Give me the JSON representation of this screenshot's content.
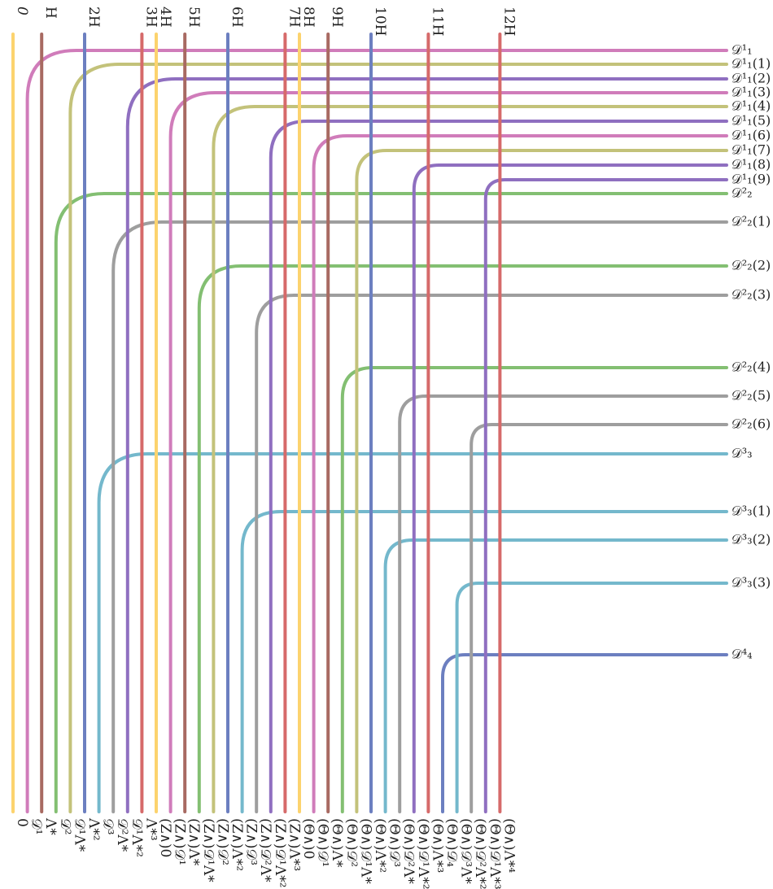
{
  "palette": {
    "yellow": "#fcd36e",
    "pink": "#d07cba",
    "brown": "#a86a62",
    "blue": "#6c7fc0",
    "red": "#d66a6a",
    "green": "#83bf72",
    "olive": "#c3c27a",
    "purple": "#8f6fc0",
    "gray": "#9e9e9e",
    "cyan": "#74b8cc"
  },
  "top_labels": [
    {
      "text": "0",
      "color": "yellow"
    },
    {
      "text": "H",
      "color": "brown"
    },
    {
      "text": "2H",
      "color": "blue"
    },
    {
      "text": "3H",
      "color": "red"
    },
    {
      "text": "4H",
      "color": "yellow"
    },
    {
      "text": "5H",
      "color": "brown"
    },
    {
      "text": "6H",
      "color": "blue"
    },
    {
      "text": "7H",
      "color": "red"
    },
    {
      "text": "8H",
      "color": "yellow"
    },
    {
      "text": "9H",
      "color": "brown"
    },
    {
      "text": "10H",
      "color": "blue"
    },
    {
      "text": "11H",
      "color": "red"
    },
    {
      "text": "12H",
      "color": "red"
    }
  ],
  "bottom_labels": [
    {
      "text": "0",
      "color": "yellow"
    },
    {
      "text": "𝒟¹",
      "color": "pink"
    },
    {
      "text": "Λ*",
      "color": "brown"
    },
    {
      "text": "𝒟²",
      "color": "green"
    },
    {
      "text": "𝒟¹Λ*",
      "color": "olive"
    },
    {
      "text": "Λ*²",
      "color": "blue"
    },
    {
      "text": "𝒟³",
      "color": "cyan"
    },
    {
      "text": "𝒟²Λ*",
      "color": "gray"
    },
    {
      "text": "𝒟¹Λ*²",
      "color": "purple"
    },
    {
      "text": "Λ*³",
      "color": "red"
    },
    {
      "text": "(Z∧)0",
      "color": "yellow"
    },
    {
      "text": "(Z∧)𝒟¹",
      "color": "pink"
    },
    {
      "text": "(Z∧)Λ*",
      "color": "brown"
    },
    {
      "text": "(Z∧)𝒟¹Λ*",
      "color": "green"
    },
    {
      "text": "(Z∧)𝒟²",
      "color": "olive"
    },
    {
      "text": "(Z∧)Λ*²",
      "color": "blue"
    },
    {
      "text": "(Z∧)𝒟³",
      "color": "cyan"
    },
    {
      "text": "(Z∧)𝒟²Λ*",
      "color": "gray"
    },
    {
      "text": "(Z∧)𝒟¹Λ*²",
      "color": "purple"
    },
    {
      "text": "(Z∧)Λ*³",
      "color": "red"
    },
    {
      "text": "(Θ∧)0",
      "color": "yellow"
    },
    {
      "text": "(Θ∧)𝒟¹",
      "color": "pink"
    },
    {
      "text": "(Θ∧)Λ*",
      "color": "brown"
    },
    {
      "text": "(Θ∧)𝒟²",
      "color": "green"
    },
    {
      "text": "(Θ∧)𝒟¹Λ*",
      "color": "olive"
    },
    {
      "text": "(Θ∧)Λ*²",
      "color": "blue"
    },
    {
      "text": "(Θ∧)𝒟³",
      "color": "cyan"
    },
    {
      "text": "(Θ∧)𝒟²Λ*",
      "color": "gray"
    },
    {
      "text": "(Θ∧)𝒟¹Λ*²",
      "color": "purple"
    },
    {
      "text": "(Θ∧)Λ*³",
      "color": "red"
    },
    {
      "text": "(Θ∧)𝒟₄",
      "color": "blue"
    },
    {
      "text": "(Θ∧)𝒟³Λ*",
      "color": "cyan"
    },
    {
      "text": "(Θ∧)𝒟²Λ*²",
      "color": "gray"
    },
    {
      "text": "(Θ∧)𝒟¹Λ*³",
      "color": "purple"
    },
    {
      "text": "(Θ∧)Λ*⁴",
      "color": "red"
    }
  ],
  "right_labels": [
    {
      "text": "𝒟¹₁",
      "color": "pink"
    },
    {
      "text": "𝒟¹₁(1)",
      "color": "olive"
    },
    {
      "text": "𝒟¹₁(2)",
      "color": "purple"
    },
    {
      "text": "𝒟¹₁(3)",
      "color": "pink"
    },
    {
      "text": "𝒟¹₁(4)",
      "color": "olive"
    },
    {
      "text": "𝒟¹₁(5)",
      "color": "purple"
    },
    {
      "text": "𝒟¹₁(6)",
      "color": "pink"
    },
    {
      "text": "𝒟¹₁(7)",
      "color": "olive"
    },
    {
      "text": "𝒟¹₁(8)",
      "color": "purple"
    },
    {
      "text": "𝒟¹₁(9)",
      "color": "purple"
    },
    {
      "text": "𝒟²₂",
      "color": "green"
    },
    {
      "text": "𝒟²₂(1)",
      "color": "gray"
    },
    {
      "text": "𝒟²₂(2)",
      "color": "green"
    },
    {
      "text": "𝒟²₂(3)",
      "color": "gray"
    },
    {
      "text": "𝒟²₂(4)",
      "color": "green"
    },
    {
      "text": "𝒟²₂(5)",
      "color": "gray"
    },
    {
      "text": "𝒟²₂(6)",
      "color": "gray"
    },
    {
      "text": "𝒟³₃",
      "color": "cyan"
    },
    {
      "text": "𝒟³₃(1)",
      "color": "cyan"
    },
    {
      "text": "𝒟³₃(2)",
      "color": "cyan"
    },
    {
      "text": "𝒟³₃(3)",
      "color": "cyan"
    },
    {
      "text": "𝒟⁴₄",
      "color": "blue"
    }
  ]
}
